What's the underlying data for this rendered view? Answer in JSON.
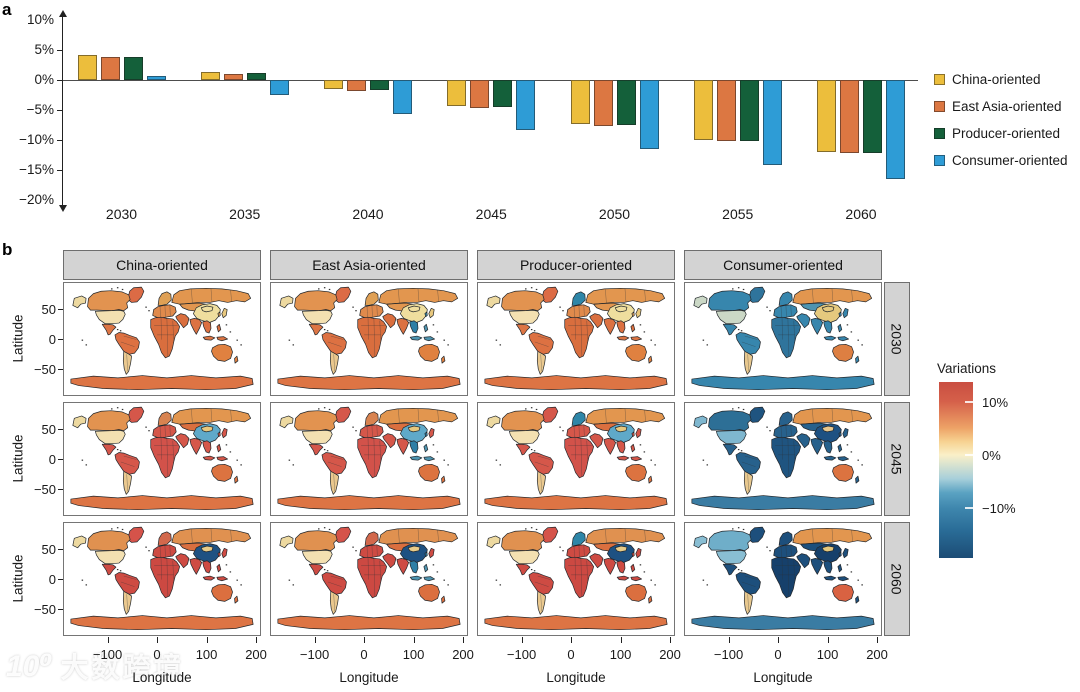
{
  "panel_a": {
    "label": "a",
    "y_axis": {
      "ticks": [
        {
          "label": "10%",
          "v": 10
        },
        {
          "label": "5%",
          "v": 5
        },
        {
          "label": "0%",
          "v": 0
        },
        {
          "label": "−5%",
          "v": -5
        },
        {
          "label": "−10%",
          "v": -10
        },
        {
          "label": "−15%",
          "v": -15
        },
        {
          "label": "−20%",
          "v": -20
        }
      ]
    },
    "x_axis": {
      "years": [
        "2030",
        "2035",
        "2040",
        "2045",
        "2050",
        "2055",
        "2060"
      ]
    }
  },
  "panel_b": {
    "label": "b",
    "col_labels": [
      "China-oriented",
      "East Asia-oriented",
      "Producer-oriented",
      "Consumer-oriented"
    ],
    "row_labels": [
      "2030",
      "2045",
      "2060"
    ],
    "x_axis": {
      "title": "Longitude",
      "ticks": [
        {
          "label": "−100",
          "lon": -100
        },
        {
          "label": "0",
          "lon": 0
        },
        {
          "label": "100",
          "lon": 100
        },
        {
          "label": "200",
          "lon": 200
        }
      ]
    },
    "y_axis": {
      "title": "Latitude",
      "ticks": [
        {
          "label": "50",
          "lat": 50
        },
        {
          "label": "0",
          "lat": 0
        },
        {
          "label": "−50",
          "lat": -50
        }
      ]
    },
    "colorbar": {
      "title": "Variations",
      "ticks": [
        {
          "label": "10%",
          "pos": 0.114
        },
        {
          "label": "0%",
          "pos": 0.415
        },
        {
          "label": "−10%",
          "pos": 0.716
        }
      ],
      "gradient_stops": [
        {
          "c": "#C94E41",
          "p": 0
        },
        {
          "c": "#D5604A",
          "p": 11
        },
        {
          "c": "#EDA266",
          "p": 26
        },
        {
          "c": "#F7D392",
          "p": 34
        },
        {
          "c": "#FAF0C8",
          "p": 41.5
        },
        {
          "c": "#A7CFDA",
          "p": 55
        },
        {
          "c": "#5AA2C2",
          "p": 63
        },
        {
          "c": "#3F87AE",
          "p": 71.5
        },
        {
          "c": "#2A6D98",
          "p": 84
        },
        {
          "c": "#1C4C75",
          "p": 100
        }
      ]
    }
  },
  "watermark": {
    "logo": "10⁰",
    "text": "大数跨境"
  },
  "chart_data": [
    {
      "type": "bar",
      "title": "Panel a: GDP variations by scenario (%)",
      "categories": [
        "2030",
        "2035",
        "2040",
        "2045",
        "2050",
        "2055",
        "2060"
      ],
      "series": [
        {
          "name": "China-oriented",
          "color": "#ECBE3C",
          "values": [
            4.2,
            1.3,
            -1.5,
            -4.4,
            -7.4,
            -10.0,
            -12.0
          ]
        },
        {
          "name": "East Asia-oriented",
          "color": "#DC7742",
          "values": [
            3.9,
            1.0,
            -1.8,
            -4.7,
            -7.6,
            -10.2,
            -12.2
          ]
        },
        {
          "name": "Producer-oriented",
          "color": "#14603A",
          "values": [
            3.9,
            1.1,
            -1.7,
            -4.5,
            -7.5,
            -10.1,
            -12.1
          ]
        },
        {
          "name": "Consumer-oriented",
          "color": "#2E9CD6",
          "values": [
            0.7,
            -2.5,
            -5.6,
            -8.4,
            -11.5,
            -14.2,
            -16.5
          ]
        }
      ],
      "ylim": [
        -20,
        10
      ],
      "ytick_step": 5,
      "ylabel": "",
      "legend_position": "right",
      "grid": false
    },
    {
      "type": "heatmap",
      "subtype": "world-choropleth-facet-grid",
      "title": "Panel b: variations by region, scenario × year",
      "facet_cols": [
        "China-oriented",
        "East Asia-oriented",
        "Producer-oriented",
        "Consumer-oriented"
      ],
      "facet_rows": [
        "2030",
        "2045",
        "2060"
      ],
      "value_scale": {
        "label": "Variations",
        "anchors": {
          "10%": "#D5604A",
          "0%": "#FAF0C8",
          "−10%": "#3F87AE"
        }
      },
      "cells": [
        {
          "row": "2030",
          "col": "China-oriented",
          "fills": {
            "greenland": "#DC6B45",
            "alaska": "#EDD9A0",
            "canada": "#E29350",
            "usa": "#F3E0B1",
            "mexico": "#DD7544",
            "sa_north": "#DD7142",
            "sa_south": "#EAC88E",
            "europe": "#E08A4C",
            "neurope": "#DFA055",
            "russia": "#E2964F",
            "centralasia": "#E2964F",
            "mideast": "#DA6F3F",
            "africa": "#D96E3E",
            "india": "#DC7242",
            "china": "#EFDE9E",
            "mongolia": "#EFDE9E",
            "korea": "#E2A45C",
            "japan": "#E8C87E",
            "sea": "#DC7040",
            "philippines": "#DC7040",
            "indonesia": "#DC7544",
            "australia": "#E08140",
            "nz": "#E08140",
            "antarctica": "#DD7444"
          }
        },
        {
          "row": "2030",
          "col": "East Asia-oriented",
          "fills": {
            "greenland": "#DC6B45",
            "alaska": "#EDD9A0",
            "canada": "#E29350",
            "usa": "#F3E0B1",
            "mexico": "#DD7544",
            "sa_north": "#DD7142",
            "sa_south": "#EAC88E",
            "europe": "#E08A4C",
            "neurope": "#DFA055",
            "russia": "#E2964F",
            "centralasia": "#E2964F",
            "mideast": "#DA6F3F",
            "africa": "#D96E3E",
            "india": "#DC7242",
            "china": "#EFDE9E",
            "mongolia": "#EFDE9E",
            "korea": "#3E8CA8",
            "japan": "#E8C87E",
            "sea": "#2E7FA6",
            "philippines": "#4E94B0",
            "indonesia": "#4E94B0",
            "australia": "#E08140",
            "nz": "#E08140",
            "antarctica": "#DD7444"
          }
        },
        {
          "row": "2030",
          "col": "Producer-oriented",
          "fills": {
            "greenland": "#DC6B45",
            "alaska": "#EDD9A0",
            "canada": "#E29350",
            "usa": "#F3E0B1",
            "mexico": "#DD7544",
            "sa_north": "#DD7142",
            "sa_south": "#EAC88E",
            "europe": "#E08A4C",
            "neurope": "#2E86A8",
            "russia": "#E2964F",
            "centralasia": "#E2964F",
            "mideast": "#DA6F3F",
            "africa": "#D96E3E",
            "india": "#DC7242",
            "china": "#EFDE9E",
            "mongolia": "#EFDE9E",
            "korea": "#E2A45C",
            "japan": "#E8C87E",
            "sea": "#DC7040",
            "philippines": "#DC7040",
            "indonesia": "#DC7544",
            "australia": "#E08140",
            "nz": "#E08140",
            "antarctica": "#DD7444"
          }
        },
        {
          "row": "2030",
          "col": "Consumer-oriented",
          "fills": {
            "greenland": "#2F749C",
            "alaska": "#CBD8C6",
            "canada": "#3786AD",
            "usa": "#CBD8C6",
            "mexico": "#3786AD",
            "sa_north": "#3786AD",
            "sa_south": "#E8C88E",
            "europe": "#3786AD",
            "neurope": "#3786AD",
            "russia": "#E2964F",
            "centralasia": "#4E94B0",
            "mideast": "#3786AD",
            "africa": "#2F749C",
            "india": "#3786AD",
            "china": "#E5C97E",
            "mongolia": "#E5C97E",
            "korea": "#3786AD",
            "japan": "#3786AD",
            "sea": "#3786AD",
            "philippines": "#3786AD",
            "indonesia": "#3786AD",
            "australia": "#DD7F42",
            "nz": "#3786AD",
            "antarctica": "#3786AD"
          }
        },
        {
          "row": "2045",
          "col": "China-oriented",
          "fills": {
            "greenland": "#D5574A",
            "alaska": "#EDD9A0",
            "canada": "#E29350",
            "usa": "#F3E0B1",
            "mexico": "#D5564A",
            "sa_north": "#D5574A",
            "sa_south": "#EAC88E",
            "europe": "#D5574A",
            "neurope": "#D88350",
            "russia": "#E2964F",
            "centralasia": "#DA6F3F",
            "mideast": "#D5574A",
            "africa": "#D2524A",
            "india": "#D5574A",
            "china": "#5FA9C9",
            "mongolia": "#E8C87E",
            "korea": "#D5574A",
            "japan": "#D5574A",
            "sea": "#D5574A",
            "philippines": "#D5574A",
            "indonesia": "#D5574A",
            "australia": "#DC7340",
            "nz": "#DC7340",
            "antarctica": "#DD7444"
          }
        },
        {
          "row": "2045",
          "col": "East Asia-oriented",
          "fills": {
            "greenland": "#D5574A",
            "alaska": "#EDD9A0",
            "canada": "#E29350",
            "usa": "#F3E0B1",
            "mexico": "#D5564A",
            "sa_north": "#D5574A",
            "sa_south": "#EAC88E",
            "europe": "#D5574A",
            "neurope": "#D88350",
            "russia": "#E2964F",
            "centralasia": "#DA6F3F",
            "mideast": "#D5574A",
            "africa": "#D2524A",
            "india": "#D5574A",
            "china": "#5FA9C9",
            "mongolia": "#E8C87E",
            "korea": "#2E7FA6",
            "japan": "#D5574A",
            "sea": "#2E7FA6",
            "philippines": "#4E94B0",
            "indonesia": "#4E94B0",
            "australia": "#DC7340",
            "nz": "#DC7340",
            "antarctica": "#DD7444"
          }
        },
        {
          "row": "2045",
          "col": "Producer-oriented",
          "fills": {
            "greenland": "#D5574A",
            "alaska": "#EDD9A0",
            "canada": "#E29350",
            "usa": "#F3E0B1",
            "mexico": "#D5564A",
            "sa_north": "#D5574A",
            "sa_south": "#EAC88E",
            "europe": "#D5574A",
            "neurope": "#2E86A8",
            "russia": "#E2964F",
            "centralasia": "#DA6F3F",
            "mideast": "#D5574A",
            "africa": "#D2524A",
            "india": "#D5574A",
            "china": "#5FA9C9",
            "mongolia": "#E8C87E",
            "korea": "#D5574A",
            "japan": "#D5574A",
            "sea": "#D5574A",
            "philippines": "#D5574A",
            "indonesia": "#D5574A",
            "australia": "#DC7340",
            "nz": "#DC7340",
            "antarctica": "#DD7444"
          }
        },
        {
          "row": "2045",
          "col": "Consumer-oriented",
          "fills": {
            "greenland": "#1F5480",
            "alaska": "#7FB7CF",
            "canada": "#2D6F96",
            "usa": "#7FB7CF",
            "mexico": "#27618C",
            "sa_north": "#27618C",
            "sa_south": "#E8C88E",
            "europe": "#27618C",
            "neurope": "#27618C",
            "russia": "#E2964F",
            "centralasia": "#27618C",
            "mideast": "#27618C",
            "africa": "#1F5480",
            "india": "#27618C",
            "china": "#1E5182",
            "mongolia": "#E8C88E",
            "korea": "#27618C",
            "japan": "#27618C",
            "sea": "#27618C",
            "philippines": "#27618C",
            "indonesia": "#27618C",
            "australia": "#DC7340",
            "nz": "#27618C",
            "antarctica": "#3A7CA3"
          }
        },
        {
          "row": "2060",
          "col": "China-oriented",
          "fills": {
            "greenland": "#D5534A",
            "alaska": "#EDD9A0",
            "canada": "#E09150",
            "usa": "#F3E0B1",
            "mexico": "#CE4B43",
            "sa_north": "#CE4B43",
            "sa_south": "#EAC88E",
            "europe": "#CE4B43",
            "neurope": "#D2684C",
            "russia": "#E09150",
            "centralasia": "#DA6F3F",
            "mideast": "#CE4B43",
            "africa": "#CC4942",
            "india": "#CE4B43",
            "china": "#1E5182",
            "mongolia": "#E8CC8A",
            "korea": "#CE4B43",
            "japan": "#CE4B43",
            "sea": "#CE4B43",
            "philippines": "#CE4B43",
            "indonesia": "#CE4B43",
            "australia": "#DB6F3F",
            "nz": "#DB6F3F",
            "antarctica": "#DD7444"
          }
        },
        {
          "row": "2060",
          "col": "East Asia-oriented",
          "fills": {
            "greenland": "#D5534A",
            "alaska": "#EDD9A0",
            "canada": "#E09150",
            "usa": "#F3E0B1",
            "mexico": "#CE4B43",
            "sa_north": "#CE4B43",
            "sa_south": "#EAC88E",
            "europe": "#CE4B43",
            "neurope": "#D2684C",
            "russia": "#E09150",
            "centralasia": "#DA6F3F",
            "mideast": "#CE4B43",
            "africa": "#CC4942",
            "india": "#CE4B43",
            "china": "#1E5182",
            "mongolia": "#E8CC8A",
            "korea": "#2E7FA6",
            "japan": "#CE4B43",
            "sea": "#2E7FA6",
            "philippines": "#4E94B0",
            "indonesia": "#4E94B0",
            "australia": "#DB6F3F",
            "nz": "#DB6F3F",
            "antarctica": "#DD7444"
          }
        },
        {
          "row": "2060",
          "col": "Producer-oriented",
          "fills": {
            "greenland": "#D5534A",
            "alaska": "#EDD9A0",
            "canada": "#E09150",
            "usa": "#F3E0B1",
            "mexico": "#CE4B43",
            "sa_north": "#CE4B43",
            "sa_south": "#EAC88E",
            "europe": "#CE4B43",
            "neurope": "#2E86A8",
            "russia": "#E09150",
            "centralasia": "#DA6F3F",
            "mideast": "#CE4B43",
            "africa": "#CC4942",
            "india": "#CE4B43",
            "china": "#1E5182",
            "mongolia": "#E8CC8A",
            "korea": "#CE4B43",
            "japan": "#CE4B43",
            "sea": "#CE4B43",
            "philippines": "#CE4B43",
            "indonesia": "#CE4B43",
            "australia": "#DB6F3F",
            "nz": "#DB6F3F",
            "antarctica": "#DD7444"
          }
        },
        {
          "row": "2060",
          "col": "Consumer-oriented",
          "fills": {
            "greenland": "#1D4F7C",
            "alaska": "#89BED3",
            "canada": "#6FAEC9",
            "usa": "#89BED3",
            "mexico": "#1D4F7C",
            "sa_north": "#1D4F7C",
            "sa_south": "#E8C88E",
            "europe": "#1D4F7C",
            "neurope": "#1D4F7C",
            "russia": "#E2964F",
            "centralasia": "#1D4F7C",
            "mideast": "#1D4F7C",
            "africa": "#16406B",
            "india": "#1D4F7C",
            "china": "#16406B",
            "mongolia": "#E5C97E",
            "korea": "#1D4F7C",
            "japan": "#1D4F7C",
            "sea": "#1D4F7C",
            "philippines": "#1D4F7C",
            "indonesia": "#1D4F7C",
            "australia": "#D96242",
            "nz": "#1D4F7C",
            "antarctica": "#3A7CA3"
          }
        }
      ]
    }
  ]
}
